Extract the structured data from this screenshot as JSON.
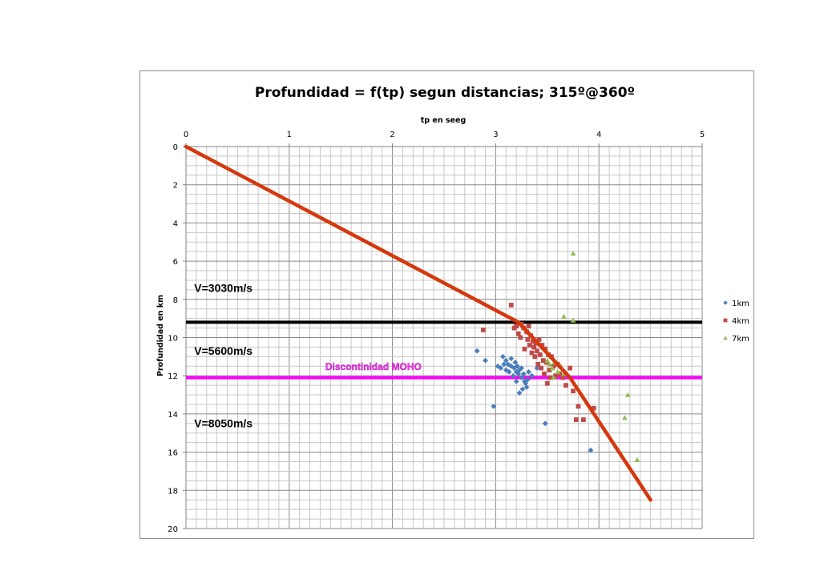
{
  "chart_data": {
    "type": "scatter",
    "title": "Profundidad = f(tp) segun distancias; 315º@360º",
    "xlabel": "tp en seeg",
    "ylabel": "Profundidad en km",
    "xlim": [
      0,
      5
    ],
    "ylim": [
      0,
      20
    ],
    "y_inverted": true,
    "x_axis_position": "top",
    "x_ticks": [
      "0",
      "1",
      "2",
      "3",
      "4",
      "5"
    ],
    "y_ticks": [
      "0",
      "2",
      "4",
      "6",
      "8",
      "10",
      "12",
      "14",
      "16",
      "18",
      "20"
    ],
    "grid": true,
    "legend_position": "right",
    "colors": {
      "1km": "#4a7ebb",
      "4km": "#be4b48",
      "7km": "#98b954",
      "fit_line": "#d4380d",
      "interface_line": "#000000",
      "moho_line": "#ff00ff"
    },
    "series": [
      {
        "name": "1km",
        "marker": "diamond",
        "points": [
          [
            2.82,
            10.7
          ],
          [
            2.9,
            11.2
          ],
          [
            2.98,
            13.6
          ],
          [
            3.02,
            11.5
          ],
          [
            3.05,
            11.6
          ],
          [
            3.07,
            11.0
          ],
          [
            3.08,
            11.4
          ],
          [
            3.1,
            11.2
          ],
          [
            3.1,
            11.7
          ],
          [
            3.12,
            11.4
          ],
          [
            3.13,
            11.8
          ],
          [
            3.15,
            11.5
          ],
          [
            3.15,
            11.1
          ],
          [
            3.17,
            12.0
          ],
          [
            3.18,
            11.6
          ],
          [
            3.19,
            11.3
          ],
          [
            3.2,
            12.3
          ],
          [
            3.2,
            11.8
          ],
          [
            3.21,
            11.5
          ],
          [
            3.22,
            11.9
          ],
          [
            3.23,
            12.9
          ],
          [
            3.23,
            11.7
          ],
          [
            3.25,
            11.6
          ],
          [
            3.25,
            12.1
          ],
          [
            3.26,
            12.7
          ],
          [
            3.27,
            11.9
          ],
          [
            3.28,
            12.3
          ],
          [
            3.29,
            12.4
          ],
          [
            3.3,
            12.6
          ],
          [
            3.31,
            12.2
          ],
          [
            3.32,
            11.8
          ],
          [
            3.35,
            12.0
          ],
          [
            3.4,
            11.6
          ],
          [
            3.48,
            14.5
          ],
          [
            3.92,
            15.9
          ]
        ]
      },
      {
        "name": "4km",
        "marker": "square",
        "points": [
          [
            2.88,
            9.6
          ],
          [
            3.15,
            8.3
          ],
          [
            3.18,
            9.5
          ],
          [
            3.2,
            9.4
          ],
          [
            3.22,
            9.8
          ],
          [
            3.24,
            10.0
          ],
          [
            3.25,
            9.3
          ],
          [
            3.27,
            9.5
          ],
          [
            3.28,
            10.6
          ],
          [
            3.3,
            9.7
          ],
          [
            3.31,
            10.1
          ],
          [
            3.32,
            9.4
          ],
          [
            3.33,
            10.4
          ],
          [
            3.34,
            9.9
          ],
          [
            3.35,
            10.8
          ],
          [
            3.36,
            10.2
          ],
          [
            3.37,
            10.5
          ],
          [
            3.38,
            11.0
          ],
          [
            3.39,
            10.3
          ],
          [
            3.4,
            10.7
          ],
          [
            3.41,
            11.4
          ],
          [
            3.42,
            10.1
          ],
          [
            3.43,
            10.9
          ],
          [
            3.44,
            11.6
          ],
          [
            3.45,
            10.4
          ],
          [
            3.46,
            11.2
          ],
          [
            3.47,
            11.9
          ],
          [
            3.48,
            10.6
          ],
          [
            3.49,
            11.3
          ],
          [
            3.5,
            12.4
          ],
          [
            3.51,
            10.9
          ],
          [
            3.52,
            11.7
          ],
          [
            3.53,
            12.1
          ],
          [
            3.54,
            11.0
          ],
          [
            3.56,
            11.5
          ],
          [
            3.58,
            12.0
          ],
          [
            3.6,
            11.4
          ],
          [
            3.62,
            11.9
          ],
          [
            3.65,
            12.1
          ],
          [
            3.68,
            12.5
          ],
          [
            3.72,
            11.6
          ],
          [
            3.75,
            12.8
          ],
          [
            3.78,
            14.3
          ],
          [
            3.8,
            13.6
          ],
          [
            3.85,
            14.3
          ],
          [
            3.95,
            13.7
          ]
        ]
      },
      {
        "name": "7km",
        "marker": "triangle",
        "points": [
          [
            3.75,
            5.6
          ],
          [
            3.66,
            8.9
          ],
          [
            3.75,
            9.1
          ],
          [
            3.5,
            11.2
          ],
          [
            3.52,
            11.4
          ],
          [
            3.55,
            11.6
          ],
          [
            3.57,
            11.3
          ],
          [
            3.6,
            11.8
          ],
          [
            3.63,
            11.5
          ],
          [
            3.66,
            11.9
          ],
          [
            3.56,
            12.1
          ],
          [
            4.28,
            13.0
          ],
          [
            4.25,
            14.2
          ],
          [
            4.37,
            16.4
          ]
        ]
      }
    ],
    "lines": [
      {
        "name": "fit-line-upper",
        "points": [
          [
            0,
            0
          ],
          [
            3.22,
            9.2
          ]
        ]
      },
      {
        "name": "fit-line-middle",
        "points": [
          [
            3.22,
            9.2
          ],
          [
            3.72,
            12.1
          ]
        ]
      },
      {
        "name": "fit-line-lower",
        "points": [
          [
            3.72,
            12.1
          ],
          [
            4.5,
            18.5
          ]
        ]
      },
      {
        "name": "interface-line",
        "y": 9.2
      },
      {
        "name": "moho-line",
        "y": 12.1
      }
    ],
    "annotations": [
      {
        "text": "V=3030m/s",
        "x": 0.08,
        "y": 7.6
      },
      {
        "text": "V=5600m/s",
        "x": 0.08,
        "y": 10.9
      },
      {
        "text": "Discontinidad MOHO",
        "x": 1.35,
        "y": 11.7
      },
      {
        "text": "V=8050m/s",
        "x": 0.08,
        "y": 14.7
      }
    ]
  }
}
